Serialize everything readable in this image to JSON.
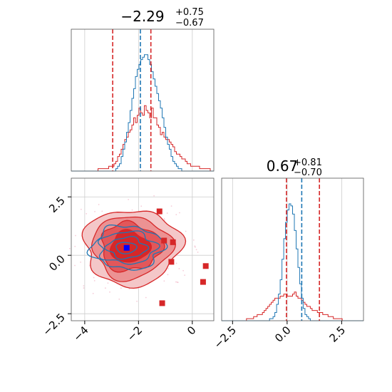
{
  "colors": {
    "red": "#d62728",
    "blue": "#1f77b4",
    "marker_blue": "#0000ff",
    "grid": "#cccccc"
  },
  "chart_data": {
    "type": "corner",
    "params": [
      {
        "title_main": "−2.29",
        "title_plus": "+0.75",
        "title_minus": "−0.67",
        "xlim": [
          -4.5,
          0.8
        ],
        "ticks": [
          "−4",
          "−2",
          "0"
        ],
        "tick_values": [
          -4,
          -2,
          0
        ]
      },
      {
        "title_main": "0.67",
        "title_plus": "+0.81",
        "title_minus": "−0.70",
        "xlim": [
          -3.0,
          3.5
        ],
        "ticks": [
          "−2.5",
          "0.0",
          "2.5"
        ],
        "tick_values": [
          -2.5,
          0.0,
          2.5
        ]
      }
    ],
    "panel_2d": {
      "xlim": [
        -4.5,
        0.8
      ],
      "ylim": [
        -2.8,
        3.3
      ],
      "yticks": [
        "−2.5",
        "0.0",
        "2.5"
      ],
      "ytick_values": [
        -2.5,
        0.0,
        2.5
      ]
    },
    "hist1_red_vlines": [
      -2.96,
      -1.54
    ],
    "hist1_blue_vline": -1.93,
    "hist2_red_vlines": [
      -0.03,
      1.48
    ],
    "hist2_blue_vline": 0.67,
    "blue_marker": {
      "x": -2.44,
      "y": 0.32
    },
    "red_markers": [
      {
        "x": -1.22,
        "y": 1.88
      },
      {
        "x": -1.05,
        "y": 0.63
      },
      {
        "x": -0.72,
        "y": 0.56
      },
      {
        "x": -0.78,
        "y": -0.28
      },
      {
        "x": 0.5,
        "y": -0.46
      },
      {
        "x": 0.4,
        "y": -1.14
      },
      {
        "x": -1.12,
        "y": -2.05
      }
    ],
    "hist1_blue": {
      "start": -4.5,
      "end": 0.8,
      "values": [
        0,
        0,
        0,
        0,
        0,
        0,
        0,
        0,
        0,
        0,
        0,
        0,
        0,
        0,
        0,
        0,
        0,
        0,
        0,
        0,
        0,
        0,
        0,
        0,
        0,
        1,
        2,
        3,
        6,
        9,
        12,
        16,
        20,
        25,
        30,
        34,
        39,
        42,
        44,
        46,
        47,
        48,
        48,
        46,
        44,
        41,
        38,
        35,
        32,
        29,
        26,
        22,
        18,
        14,
        11,
        9,
        6,
        4,
        3,
        2,
        1,
        1,
        0,
        0,
        0,
        0,
        0,
        0,
        0,
        0,
        0,
        0,
        0,
        0,
        0,
        0,
        0,
        0,
        0,
        0
      ]
    },
    "hist1_red": {
      "start": -4.5,
      "end": 0.8,
      "values": [
        0,
        0,
        0,
        0,
        0,
        0,
        0,
        0,
        0,
        0,
        0,
        0,
        0,
        0,
        0,
        1,
        1,
        1,
        1,
        1,
        1,
        2,
        2,
        2,
        3,
        4,
        6,
        7,
        9,
        11,
        13,
        14,
        16,
        17,
        19,
        22,
        20,
        23,
        26,
        24,
        23,
        27,
        25,
        24,
        22,
        26,
        22,
        22,
        19,
        18,
        15,
        16,
        14,
        13,
        13,
        12,
        11,
        10,
        8,
        7,
        7,
        6,
        5,
        5,
        4,
        3,
        3,
        2,
        2,
        2,
        2,
        2,
        1,
        1,
        1,
        1,
        1,
        1,
        0,
        0
      ]
    },
    "hist2_blue": {
      "start": -3.0,
      "end": 3.5,
      "values": [
        0,
        0,
        0,
        0,
        0,
        0,
        0,
        0,
        0,
        0,
        0,
        0,
        0,
        0,
        0,
        0,
        0,
        0,
        0,
        0,
        0,
        0,
        0,
        0,
        0,
        0,
        0,
        1,
        1,
        2,
        4,
        8,
        13,
        20,
        30,
        40,
        48,
        54,
        57,
        56,
        52,
        44,
        35,
        26,
        18,
        11,
        6,
        3,
        2,
        1,
        0,
        0,
        0,
        0,
        0,
        0,
        0,
        0,
        0,
        0,
        0,
        0,
        0,
        0,
        0,
        0,
        0,
        0,
        0,
        0,
        0,
        0,
        0,
        0,
        0,
        0,
        0,
        0,
        0,
        0
      ]
    },
    "hist2_red": {
      "start": -3.0,
      "end": 3.5,
      "values": [
        0,
        0,
        0,
        0,
        0,
        0,
        0,
        0,
        0,
        0,
        0,
        0,
        0,
        0,
        1,
        1,
        1,
        1,
        2,
        2,
        3,
        3,
        3,
        4,
        5,
        6,
        7,
        8,
        9,
        10,
        11,
        11,
        11,
        12,
        12,
        13,
        13,
        12,
        12,
        12,
        13,
        14,
        12,
        11,
        11,
        10,
        9,
        8,
        7,
        7,
        6,
        5,
        5,
        5,
        4,
        4,
        4,
        3,
        3,
        3,
        2,
        2,
        2,
        1,
        1,
        1,
        1,
        1,
        0,
        0,
        0,
        0,
        0,
        0,
        0,
        0,
        0,
        0,
        0,
        0
      ]
    }
  }
}
